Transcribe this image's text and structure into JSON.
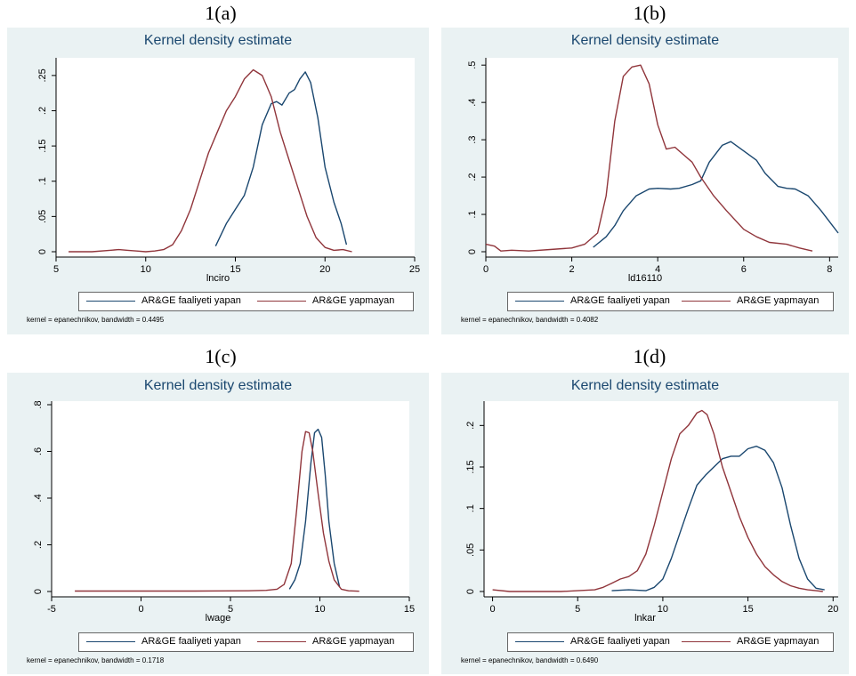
{
  "panels": [
    {
      "caption": "1(a)",
      "title": "Kernel density estimate",
      "xlabel": "lnciro",
      "note": "kernel = epanechnikov, bandwidth = 0.4495",
      "legend": [
        "AR&GE faaliyeti yapan",
        "AR&GE yapmayan"
      ]
    },
    {
      "caption": "1(b)",
      "title": "Kernel density estimate",
      "xlabel": "ld16110",
      "note": "kernel = epanechnikov, bandwidth = 0.4082",
      "legend": [
        "AR&GE faaliyeti yapan",
        "AR&GE yapmayan"
      ]
    },
    {
      "caption": "1(c)",
      "title": "Kernel density estimate",
      "xlabel": "lwage",
      "note": "kernel = epanechnikov, bandwidth = 0.1718",
      "legend": [
        "AR&GE faaliyeti yapan",
        "AR&GE yapmayan"
      ]
    },
    {
      "caption": "1(d)",
      "title": "Kernel density estimate",
      "xlabel": "lnkar",
      "note": "kernel = epanechnikov, bandwidth = 0.6490",
      "legend": [
        "AR&GE faaliyeti yapan",
        "AR&GE yapmayan"
      ]
    }
  ],
  "chart_data": [
    {
      "type": "line",
      "title": "Kernel density estimate",
      "xlabel": "lnciro",
      "ylabel": "",
      "xlim": [
        5,
        25
      ],
      "ylim": [
        0,
        0.27
      ],
      "xticks": [
        5,
        10,
        15,
        20,
        25
      ],
      "yticks": [
        0,
        0.05,
        0.1,
        0.15,
        0.2,
        0.25
      ],
      "ytick_labels": [
        "0",
        ".05",
        ".1",
        ".15",
        ".2",
        ".25"
      ],
      "grid": false,
      "legend_position": "bottom",
      "series": [
        {
          "name": "AR&GE faaliyeti yapan",
          "color": "#1a476f",
          "x": [
            13.9,
            14.5,
            15.0,
            15.5,
            16.0,
            16.5,
            17.0,
            17.3,
            17.6,
            18.0,
            18.3,
            18.6,
            18.9,
            19.2,
            19.6,
            20.0,
            20.5,
            20.9,
            21.2
          ],
          "y": [
            0.008,
            0.04,
            0.06,
            0.08,
            0.12,
            0.18,
            0.21,
            0.213,
            0.208,
            0.225,
            0.23,
            0.245,
            0.255,
            0.24,
            0.19,
            0.12,
            0.07,
            0.04,
            0.01
          ]
        },
        {
          "name": "AR&GE yapmayan",
          "color": "#90353b",
          "x": [
            5.7,
            7.0,
            8.0,
            8.5,
            9.0,
            9.5,
            10.0,
            10.5,
            11.0,
            11.5,
            12.0,
            12.5,
            13.0,
            13.5,
            14.0,
            14.5,
            15.0,
            15.5,
            16.0,
            16.5,
            17.0,
            17.5,
            18.0,
            18.5,
            19.0,
            19.5,
            20.0,
            20.5,
            21.0,
            21.5
          ],
          "y": [
            0,
            0,
            0.002,
            0.003,
            0.002,
            0.001,
            0,
            0.001,
            0.003,
            0.01,
            0.03,
            0.06,
            0.1,
            0.14,
            0.17,
            0.2,
            0.22,
            0.245,
            0.258,
            0.25,
            0.22,
            0.17,
            0.13,
            0.09,
            0.05,
            0.02,
            0.006,
            0.002,
            0.003,
            0.0
          ]
        }
      ]
    },
    {
      "type": "line",
      "title": "Kernel density estimate",
      "xlabel": "ld16110",
      "ylabel": "",
      "xlim": [
        0,
        8.2
      ],
      "ylim": [
        0,
        0.51
      ],
      "xticks": [
        0,
        2,
        4,
        6,
        8
      ],
      "yticks": [
        0,
        0.1,
        0.2,
        0.3,
        0.4,
        0.5
      ],
      "ytick_labels": [
        "0",
        ".1",
        ".2",
        ".3",
        ".4",
        ".5"
      ],
      "grid": false,
      "legend_position": "bottom",
      "series": [
        {
          "name": "AR&GE faaliyeti yapan",
          "color": "#1a476f",
          "x": [
            2.5,
            2.8,
            3.0,
            3.2,
            3.5,
            3.8,
            4.0,
            4.3,
            4.5,
            4.8,
            5.0,
            5.2,
            5.5,
            5.7,
            6.0,
            6.3,
            6.5,
            6.8,
            7.0,
            7.2,
            7.5,
            7.8,
            8.2
          ],
          "y": [
            0.012,
            0.04,
            0.07,
            0.11,
            0.15,
            0.168,
            0.17,
            0.168,
            0.17,
            0.18,
            0.19,
            0.24,
            0.285,
            0.295,
            0.27,
            0.245,
            0.21,
            0.175,
            0.17,
            0.168,
            0.15,
            0.11,
            0.05
          ]
        },
        {
          "name": "AR&GE yapmayan",
          "color": "#90353b",
          "x": [
            0.0,
            0.2,
            0.35,
            0.6,
            1.0,
            1.5,
            2.0,
            2.3,
            2.6,
            2.8,
            3.0,
            3.2,
            3.4,
            3.6,
            3.8,
            4.0,
            4.2,
            4.4,
            4.6,
            4.8,
            5.0,
            5.3,
            5.6,
            6.0,
            6.3,
            6.6,
            7.0,
            7.3,
            7.6
          ],
          "y": [
            0.02,
            0.015,
            0.002,
            0.004,
            0.002,
            0.006,
            0.01,
            0.02,
            0.05,
            0.15,
            0.35,
            0.47,
            0.495,
            0.5,
            0.45,
            0.34,
            0.275,
            0.28,
            0.26,
            0.24,
            0.2,
            0.15,
            0.11,
            0.06,
            0.04,
            0.025,
            0.02,
            0.01,
            0.002
          ]
        }
      ]
    },
    {
      "type": "line",
      "title": "Kernel density estimate",
      "xlabel": "lwage",
      "ylabel": "",
      "xlim": [
        -5,
        15
      ],
      "ylim": [
        0,
        0.8
      ],
      "xticks": [
        -5,
        0,
        5,
        10,
        15
      ],
      "yticks": [
        0,
        0.2,
        0.4,
        0.6,
        0.8
      ],
      "ytick_labels": [
        "0",
        ".2",
        ".4",
        ".6",
        ".8"
      ],
      "grid": false,
      "legend_position": "bottom",
      "series": [
        {
          "name": "AR&GE faaliyeti yapan",
          "color": "#1a476f",
          "x": [
            8.3,
            8.6,
            8.9,
            9.2,
            9.5,
            9.7,
            9.9,
            10.1,
            10.3,
            10.5,
            10.8,
            11.1
          ],
          "y": [
            0.01,
            0.05,
            0.12,
            0.3,
            0.55,
            0.68,
            0.695,
            0.66,
            0.5,
            0.3,
            0.12,
            0.02
          ]
        },
        {
          "name": "AR&GE yapmayan",
          "color": "#90353b",
          "x": [
            -3.7,
            0.0,
            3.0,
            6.0,
            7.0,
            7.6,
            8.0,
            8.4,
            8.7,
            9.0,
            9.2,
            9.4,
            9.6,
            9.9,
            10.2,
            10.5,
            10.8,
            11.2,
            11.6,
            12.2
          ],
          "y": [
            0.002,
            0.002,
            0.002,
            0.003,
            0.005,
            0.01,
            0.03,
            0.12,
            0.35,
            0.6,
            0.685,
            0.68,
            0.6,
            0.42,
            0.25,
            0.13,
            0.05,
            0.01,
            0.003,
            0.001
          ]
        }
      ]
    },
    {
      "type": "line",
      "title": "Kernel density estimate",
      "xlabel": "lnkar",
      "ylabel": "",
      "xlim": [
        -0.5,
        20.3
      ],
      "ylim": [
        0,
        0.225
      ],
      "xticks": [
        0,
        5,
        10,
        15,
        20
      ],
      "yticks": [
        0,
        0.05,
        0.1,
        0.15,
        0.2
      ],
      "ytick_labels": [
        "0",
        ".05",
        ".1",
        ".15",
        ".2"
      ],
      "grid": false,
      "legend_position": "bottom",
      "series": [
        {
          "name": "AR&GE faaliyeti yapan",
          "color": "#1a476f",
          "x": [
            7.0,
            8.0,
            9.0,
            9.5,
            10.0,
            10.5,
            11.0,
            11.5,
            12.0,
            12.5,
            13.0,
            13.5,
            14.0,
            14.5,
            15.0,
            15.5,
            16.0,
            16.5,
            17.0,
            17.5,
            18.0,
            18.5,
            19.0,
            19.5
          ],
          "y": [
            0.001,
            0.002,
            0.001,
            0.005,
            0.015,
            0.04,
            0.07,
            0.1,
            0.128,
            0.14,
            0.15,
            0.16,
            0.163,
            0.163,
            0.172,
            0.175,
            0.17,
            0.155,
            0.125,
            0.08,
            0.04,
            0.015,
            0.004,
            0.002
          ]
        },
        {
          "name": "AR&GE yapmayan",
          "color": "#90353b",
          "x": [
            0.0,
            1.0,
            2.0,
            3.0,
            4.0,
            5.0,
            6.0,
            6.5,
            7.0,
            7.5,
            8.0,
            8.5,
            9.0,
            9.5,
            10.0,
            10.5,
            11.0,
            11.5,
            12.0,
            12.3,
            12.6,
            13.0,
            13.5,
            14.0,
            14.5,
            15.0,
            15.5,
            16.0,
            16.5,
            17.0,
            17.5,
            18.0,
            18.5,
            19.0,
            19.4
          ],
          "y": [
            0.002,
            0.0,
            0.0,
            0.0,
            0.0,
            0.001,
            0.002,
            0.005,
            0.01,
            0.015,
            0.018,
            0.025,
            0.045,
            0.08,
            0.12,
            0.16,
            0.19,
            0.2,
            0.215,
            0.218,
            0.213,
            0.19,
            0.15,
            0.12,
            0.09,
            0.065,
            0.045,
            0.03,
            0.02,
            0.012,
            0.007,
            0.004,
            0.002,
            0.001,
            0.0
          ]
        }
      ]
    }
  ]
}
